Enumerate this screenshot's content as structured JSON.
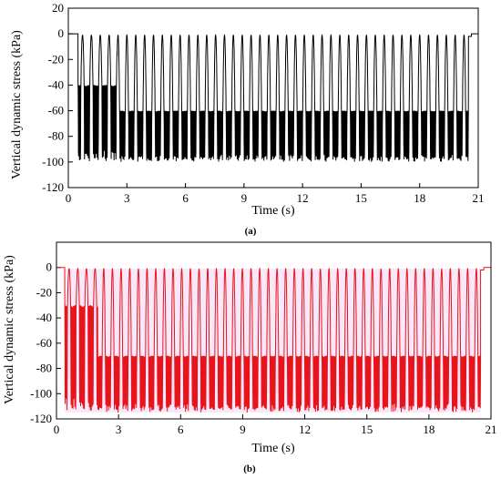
{
  "chart_data": [
    {
      "type": "line",
      "caption": "(a)",
      "xlabel": "Time (s)",
      "ylabel": "Vertical dynamic stress (kPa)",
      "xlim": [
        0,
        21
      ],
      "ylim": [
        -120,
        20
      ],
      "xticks": [
        0,
        3,
        6,
        9,
        12,
        15,
        18,
        21
      ],
      "yticks": [
        20,
        0,
        -20,
        -40,
        -60,
        -80,
        -100,
        -120
      ],
      "grid": false,
      "line_color": "#000000",
      "signal": {
        "start_time": 0.0,
        "end_time": 21.0,
        "baseline": 0,
        "active_from": 0.5,
        "active_to": 20.5,
        "cycles": 44,
        "peak_value": -1,
        "trough_min": -100,
        "trough_secondary": -60,
        "early_phase_end": 2.5,
        "early_trough_secondary": -40
      }
    },
    {
      "type": "line",
      "caption": "(b)",
      "xlabel": "Time (s)",
      "ylabel": "Vertical dynamic stress (kPa)",
      "xlim": [
        0,
        21
      ],
      "ylim": [
        -120,
        20
      ],
      "xticks": [
        0,
        3,
        6,
        9,
        12,
        15,
        18,
        21
      ],
      "yticks": [
        0,
        -20,
        -40,
        -60,
        -80,
        -100,
        -120
      ],
      "grid": false,
      "line_color": "#e8141b",
      "envelope_color": "#f3d2f3",
      "signal": {
        "start_time": 0.0,
        "end_time": 21.0,
        "baseline": 0,
        "active_from": 0.4,
        "active_to": 20.5,
        "cycles": 48,
        "peak_value": -1,
        "trough_min": -115,
        "trough_secondary": -70,
        "early_phase_end": 2.0,
        "early_trough_secondary": -30
      }
    }
  ]
}
